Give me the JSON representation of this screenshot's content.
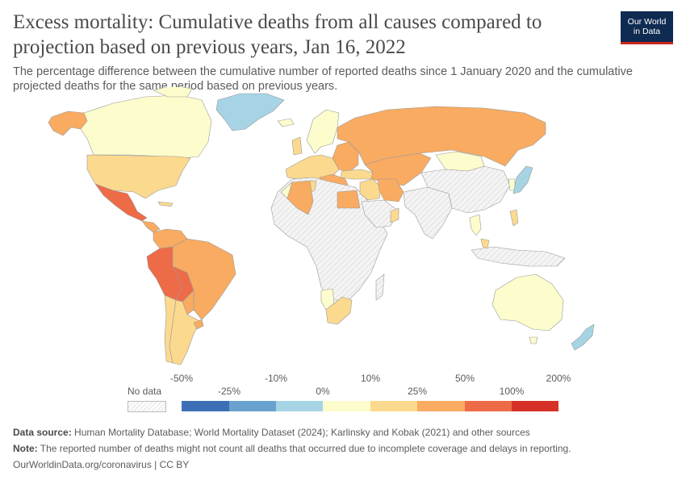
{
  "header": {
    "title": "Excess mortality: Cumulative deaths from all causes compared to projection based on previous years, Jan 16, 2022",
    "subtitle": "The percentage difference between the cumulative number of reported deaths since 1 January 2020 and the cumulative projected deaths for the same period based on previous years."
  },
  "logo": {
    "line1": "Our World",
    "line2": "in Data"
  },
  "legend": {
    "no_data_label": "No data",
    "upper_labels": [
      "-50%",
      "-10%",
      "10%",
      "50%",
      "200%"
    ],
    "lower_labels": [
      "-25%",
      "0%",
      "25%",
      "100%"
    ],
    "bins": [
      {
        "from": "-50%",
        "to": "-25%",
        "color": "#3d6fb6"
      },
      {
        "from": "-25%",
        "to": "-10%",
        "color": "#6aa2cf"
      },
      {
        "from": "-10%",
        "to": "0%",
        "color": "#a6d4e4"
      },
      {
        "from": "0%",
        "to": "10%",
        "color": "#fdfccc"
      },
      {
        "from": "10%",
        "to": "25%",
        "color": "#fbd98e"
      },
      {
        "from": "25%",
        "to": "50%",
        "color": "#f8ab61"
      },
      {
        "from": "50%",
        "to": "100%",
        "color": "#ee6b48"
      },
      {
        "from": "100%",
        "to": "200%",
        "color": "#d63127"
      }
    ]
  },
  "map_colors": {
    "no_data": "#eeeeee",
    "lt0": "#a6d4e4",
    "0_10": "#fdfccc",
    "10_25": "#fbd98e",
    "25_50": "#f8ab61",
    "50_100": "#ee6b48"
  },
  "footer": {
    "source_label": "Data source:",
    "source_text": "Human Mortality Database; World Mortality Dataset (2024); Karlinsky and Kobak (2021) and other sources",
    "note_label": "Note:",
    "note_text": "The reported number of deaths might not count all deaths that occurred due to incomplete coverage and delays in reporting.",
    "url": "OurWorldinData.org/coronavirus | CC BY"
  }
}
